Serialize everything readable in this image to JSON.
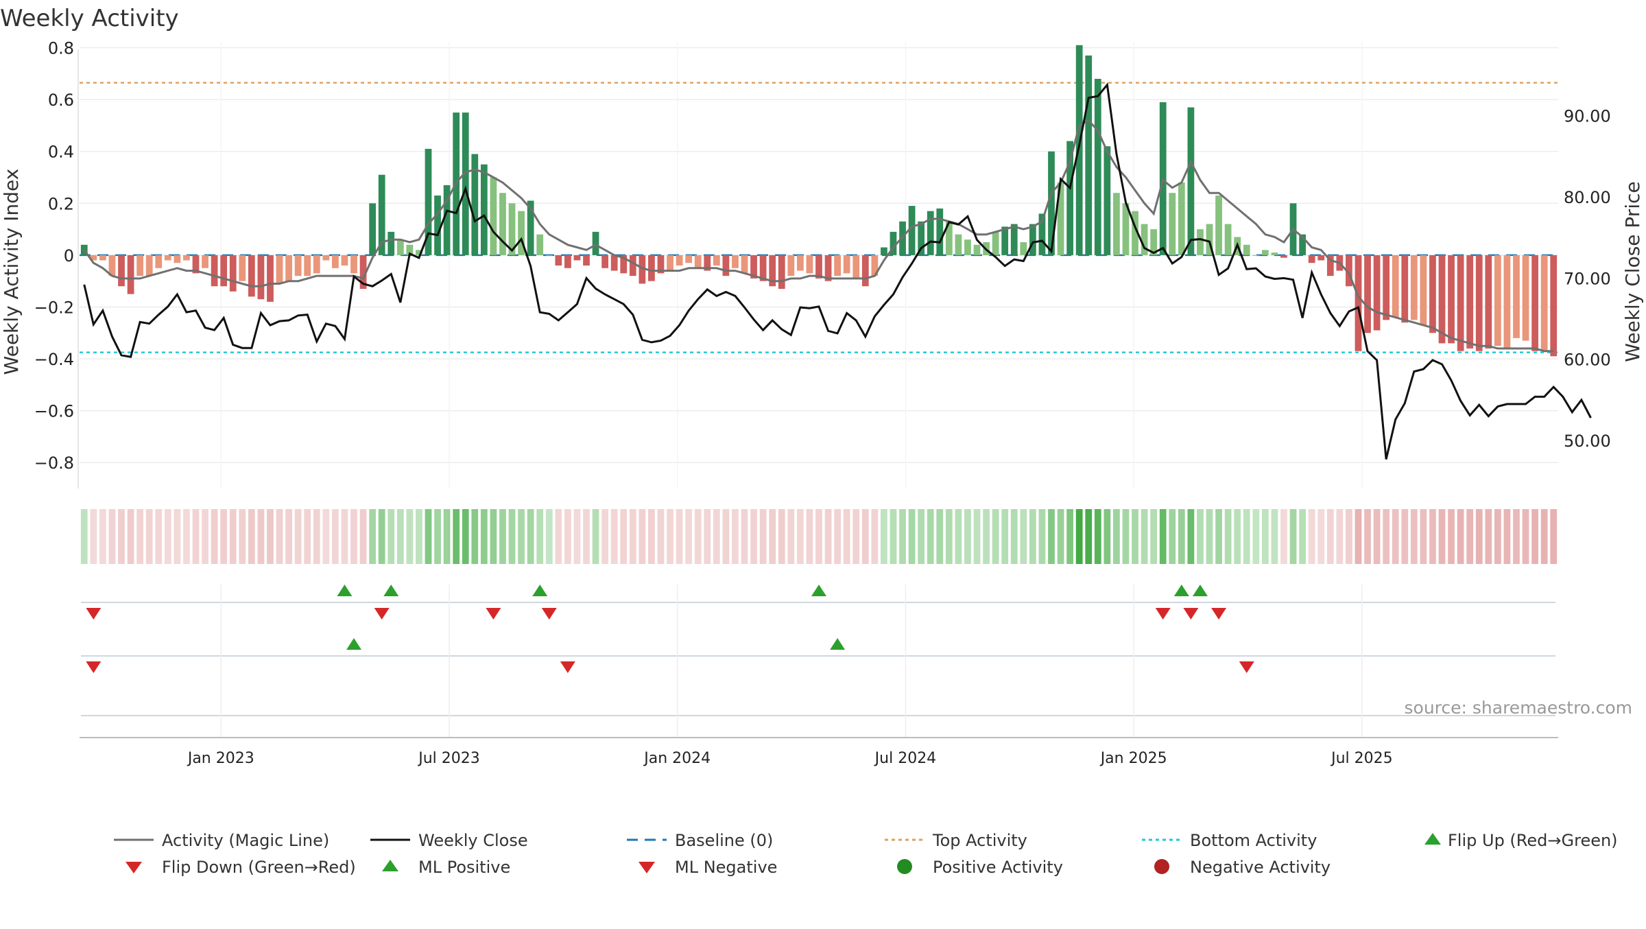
{
  "chart_data": {
    "type": "bar+line",
    "title": "Weekly Activity",
    "ylabel_left": "Weekly Activity Index",
    "ylabel_right": "Weekly Close Price",
    "source": "source: sharemaestro.com",
    "left_axis": {
      "ylim": [
        -0.9,
        0.82
      ],
      "ticks": [
        0.8,
        0.6,
        0.4,
        0.2,
        0,
        -0.2,
        -0.4,
        -0.6,
        -0.8
      ],
      "tick_labels": [
        "0.8",
        "0.6",
        "0.4",
        "0.2",
        "0",
        "−0.2",
        "−0.4",
        "−0.6",
        "−0.8"
      ]
    },
    "right_axis": {
      "ylim": [
        44.1,
        99.0
      ],
      "ticks": [
        90,
        80,
        70,
        60,
        50
      ],
      "tick_labels": [
        "90.00",
        "80.00",
        "70.00",
        "60.00",
        "50.00"
      ]
    },
    "x_axis": {
      "week_range": [
        0,
        162
      ],
      "ticks": [
        {
          "label": "Jan 2023",
          "week": 15.5
        },
        {
          "label": "Jul 2023",
          "week": 40.5
        },
        {
          "label": "Jan 2024",
          "week": 65.5
        },
        {
          "label": "Jul 2024",
          "week": 90.5
        },
        {
          "label": "Jan 2025",
          "week": 115.5
        },
        {
          "label": "Jul 2025",
          "week": 140.5
        }
      ]
    },
    "top_activity": 0.665,
    "bottom_activity": -0.375,
    "baseline": 0,
    "activity": [
      0.04,
      -0.02,
      -0.02,
      -0.08,
      -0.12,
      -0.15,
      -0.08,
      -0.08,
      -0.05,
      -0.02,
      -0.03,
      -0.02,
      -0.07,
      -0.05,
      -0.12,
      -0.12,
      -0.14,
      -0.1,
      -0.16,
      -0.17,
      -0.18,
      -0.11,
      -0.1,
      -0.08,
      -0.08,
      -0.07,
      -0.02,
      -0.05,
      -0.04,
      -0.07,
      -0.13,
      0.2,
      0.31,
      0.09,
      0.06,
      0.04,
      0.02,
      0.41,
      0.23,
      0.27,
      0.55,
      0.55,
      0.39,
      0.35,
      0.3,
      0.24,
      0.2,
      0.17,
      0.21,
      0.08,
      0.0,
      -0.04,
      -0.05,
      -0.02,
      -0.04,
      0.09,
      -0.05,
      -0.06,
      -0.07,
      -0.08,
      -0.11,
      -0.1,
      -0.07,
      -0.06,
      -0.04,
      -0.03,
      -0.05,
      -0.06,
      -0.04,
      -0.08,
      -0.05,
      -0.07,
      -0.09,
      -0.1,
      -0.12,
      -0.13,
      -0.08,
      -0.06,
      -0.07,
      -0.09,
      -0.1,
      -0.08,
      -0.07,
      -0.09,
      -0.12,
      -0.08,
      0.03,
      0.09,
      0.13,
      0.19,
      0.13,
      0.17,
      0.18,
      0.13,
      0.08,
      0.06,
      0.04,
      0.05,
      0.09,
      0.11,
      0.12,
      0.05,
      0.12,
      0.16,
      0.4,
      0.28,
      0.44,
      0.81,
      0.77,
      0.68,
      0.42,
      0.24,
      0.2,
      0.17,
      0.12,
      0.1,
      0.59,
      0.24,
      0.28,
      0.57,
      0.1,
      0.12,
      0.23,
      0.12,
      0.07,
      0.04,
      0.0,
      0.02,
      0.01,
      -0.01,
      0.2,
      0.08,
      -0.03,
      -0.02,
      -0.08,
      -0.06,
      -0.12,
      -0.37,
      -0.3,
      -0.29,
      -0.25,
      -0.24,
      -0.26,
      -0.25,
      -0.27,
      -0.3,
      -0.34,
      -0.34,
      -0.37,
      -0.36,
      -0.37,
      -0.36,
      -0.35,
      -0.36,
      -0.32,
      -0.33,
      -0.37,
      -0.37,
      -0.39
    ],
    "magic_line": [
      0.02,
      -0.03,
      -0.05,
      -0.08,
      -0.09,
      -0.09,
      -0.09,
      -0.08,
      -0.07,
      -0.06,
      -0.05,
      -0.06,
      -0.06,
      -0.07,
      -0.08,
      -0.09,
      -0.1,
      -0.11,
      -0.12,
      -0.12,
      -0.11,
      -0.11,
      -0.1,
      -0.1,
      -0.09,
      -0.08,
      -0.08,
      -0.08,
      -0.08,
      -0.08,
      -0.09,
      -0.01,
      0.05,
      0.06,
      0.06,
      0.05,
      0.06,
      0.12,
      0.16,
      0.21,
      0.28,
      0.32,
      0.33,
      0.32,
      0.3,
      0.28,
      0.25,
      0.22,
      0.18,
      0.12,
      0.08,
      0.06,
      0.04,
      0.03,
      0.02,
      0.04,
      0.02,
      0.0,
      -0.01,
      -0.03,
      -0.05,
      -0.06,
      -0.06,
      -0.06,
      -0.06,
      -0.05,
      -0.05,
      -0.05,
      -0.05,
      -0.06,
      -0.06,
      -0.07,
      -0.08,
      -0.09,
      -0.1,
      -0.1,
      -0.09,
      -0.09,
      -0.08,
      -0.08,
      -0.09,
      -0.09,
      -0.09,
      -0.09,
      -0.09,
      -0.08,
      -0.02,
      0.03,
      0.07,
      0.11,
      0.12,
      0.14,
      0.14,
      0.13,
      0.12,
      0.1,
      0.08,
      0.08,
      0.09,
      0.1,
      0.11,
      0.1,
      0.11,
      0.13,
      0.24,
      0.28,
      0.36,
      0.5,
      0.52,
      0.48,
      0.4,
      0.34,
      0.3,
      0.25,
      0.2,
      0.16,
      0.29,
      0.26,
      0.28,
      0.36,
      0.29,
      0.24,
      0.24,
      0.21,
      0.18,
      0.15,
      0.12,
      0.08,
      0.07,
      0.05,
      0.1,
      0.07,
      0.03,
      0.02,
      -0.02,
      -0.03,
      -0.07,
      -0.16,
      -0.2,
      -0.22,
      -0.23,
      -0.24,
      -0.25,
      -0.26,
      -0.27,
      -0.28,
      -0.3,
      -0.32,
      -0.33,
      -0.34,
      -0.35,
      -0.35,
      -0.36,
      -0.36,
      -0.36,
      -0.36,
      -0.36,
      -0.37,
      -0.37
    ],
    "weekly_close": [
      69.2,
      64.3,
      66.0,
      62.8,
      60.5,
      60.3,
      64.6,
      64.4,
      65.5,
      66.5,
      68.0,
      65.8,
      66.0,
      63.9,
      63.6,
      65.1,
      61.8,
      61.4,
      61.4,
      65.7,
      64.2,
      64.7,
      64.8,
      65.4,
      65.5,
      62.2,
      64.4,
      64.1,
      62.5,
      70.2,
      69.3,
      69.0,
      69.7,
      70.5,
      67.0,
      73.0,
      72.5,
      75.5,
      75.3,
      78.3,
      78.0,
      81.0,
      77.0,
      77.7,
      75.7,
      74.5,
      73.4,
      74.8,
      71.5,
      65.8,
      65.6,
      64.8,
      65.8,
      66.8,
      70.0,
      68.7,
      68.0,
      67.4,
      66.8,
      65.5,
      62.4,
      62.1,
      62.3,
      62.9,
      64.2,
      66.0,
      67.4,
      68.6,
      67.8,
      68.3,
      67.8,
      66.4,
      64.9,
      63.6,
      64.8,
      63.7,
      63.0,
      66.4,
      66.3,
      66.5,
      63.5,
      63.2,
      65.7,
      64.8,
      62.8,
      65.3,
      66.7,
      68.0,
      70.1,
      71.8,
      73.7,
      74.5,
      74.4,
      76.9,
      76.6,
      77.6,
      74.7,
      73.5,
      72.6,
      71.5,
      72.3,
      72.1,
      74.4,
      74.6,
      73.3,
      82.2,
      81.1,
      86.4,
      92.2,
      92.4,
      93.8,
      85.3,
      79.3,
      76.3,
      73.7,
      73.1,
      73.7,
      71.8,
      72.6,
      74.7,
      74.8,
      74.5,
      70.4,
      71.2,
      74.1,
      71.1,
      71.2,
      70.2,
      69.9,
      70.0,
      69.8,
      65.1,
      70.7,
      68.0,
      65.7,
      64.1,
      65.9,
      66.4,
      61.0,
      59.9,
      47.7,
      52.6,
      54.6,
      58.5,
      58.8,
      59.9,
      59.4,
      57.4,
      54.9,
      53.1,
      54.4,
      53.0,
      54.2,
      54.5,
      54.5,
      54.5,
      55.4,
      55.4,
      56.6,
      55.4,
      53.5,
      55.0,
      52.8
    ],
    "flip_up": [
      28,
      33,
      49,
      79,
      118,
      120
    ],
    "flip_down": [
      1,
      32,
      44,
      50,
      116,
      119,
      122
    ],
    "ml_positive": [
      29,
      81
    ],
    "ml_negative": [
      1,
      52,
      125
    ],
    "legend": [
      "Activity (Magic Line)",
      "Weekly Close",
      "Baseline (0)",
      "Top Activity",
      "Bottom Activity",
      "Flip Up (Red→Green)",
      "Flip Down (Green→Red)",
      "ML Positive",
      "ML Negative",
      "Positive Activity",
      "Negative Activity"
    ]
  },
  "colors": {
    "pos_dark": "#2e8b57",
    "pos_light": "#86c17e",
    "neg_dark": "#cd5c5c",
    "neg_light": "#e9967a",
    "magic": "#707070",
    "close": "#111111",
    "baseline": "#1f77b4",
    "top": "#e0a060",
    "bottom": "#22c8d8",
    "up": "#2ca02c",
    "down": "#d62728",
    "legend_pos": "#228b22",
    "legend_neg": "#b22222"
  }
}
